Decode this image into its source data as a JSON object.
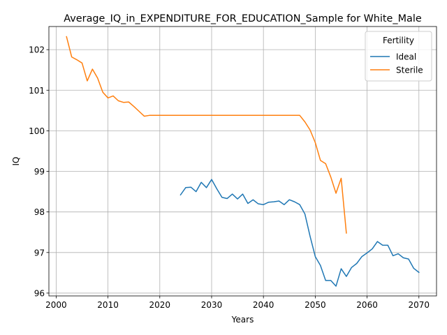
{
  "chart_data": {
    "type": "line",
    "title": "Average_IQ_in_EXPENDITURE_FOR_EDUCATION_Sample for White_Male",
    "xlabel": "Years",
    "ylabel": "IQ",
    "xlim": [
      1998.6,
      2073.4
    ],
    "ylim": [
      95.93,
      102.57
    ],
    "x_ticks": [
      2000,
      2010,
      2020,
      2030,
      2040,
      2050,
      2060,
      2070
    ],
    "y_ticks": [
      96,
      97,
      98,
      99,
      100,
      101,
      102
    ],
    "grid": true,
    "legend": {
      "title": "Fertility",
      "position": "top-right"
    },
    "series": [
      {
        "name": "Ideal",
        "color": "#1f77b4",
        "x": [
          2024,
          2025,
          2026,
          2027,
          2028,
          2029,
          2030,
          2031,
          2032,
          2033,
          2034,
          2035,
          2036,
          2037,
          2038,
          2039,
          2040,
          2041,
          2042,
          2043,
          2044,
          2045,
          2046,
          2047,
          2048,
          2049,
          2050,
          2051,
          2052,
          2053,
          2054,
          2055,
          2056,
          2057,
          2058,
          2059,
          2060,
          2061,
          2062,
          2063,
          2064,
          2065,
          2066,
          2067,
          2068,
          2069,
          2070
        ],
        "y": [
          98.42,
          98.6,
          98.61,
          98.5,
          98.73,
          98.6,
          98.8,
          98.57,
          98.36,
          98.33,
          98.44,
          98.32,
          98.44,
          98.21,
          98.3,
          98.2,
          98.18,
          98.24,
          98.25,
          98.27,
          98.18,
          98.3,
          98.25,
          98.18,
          97.95,
          97.4,
          96.9,
          96.68,
          96.31,
          96.31,
          96.17,
          96.6,
          96.41,
          96.63,
          96.73,
          96.9,
          96.99,
          97.09,
          97.27,
          97.18,
          97.18,
          96.92,
          96.97,
          96.87,
          96.84,
          96.61,
          96.51
        ]
      },
      {
        "name": "Sterile",
        "color": "#ff7f0e",
        "x": [
          2002,
          2003,
          2004,
          2005,
          2006,
          2007,
          2008,
          2009,
          2010,
          2011,
          2012,
          2013,
          2014,
          2015,
          2016,
          2017,
          2018,
          2019,
          2020,
          2025,
          2030,
          2035,
          2040,
          2045,
          2047,
          2048,
          2049,
          2050,
          2051,
          2052,
          2053,
          2054,
          2055,
          2056
        ],
        "y": [
          102.32,
          101.82,
          101.75,
          101.67,
          101.23,
          101.52,
          101.3,
          100.95,
          100.81,
          100.86,
          100.74,
          100.7,
          100.71,
          100.6,
          100.48,
          100.36,
          100.38,
          100.38,
          100.38,
          100.38,
          100.38,
          100.38,
          100.38,
          100.38,
          100.38,
          100.22,
          100.02,
          99.71,
          99.27,
          99.19,
          98.86,
          98.46,
          98.83,
          97.48
        ]
      }
    ]
  }
}
